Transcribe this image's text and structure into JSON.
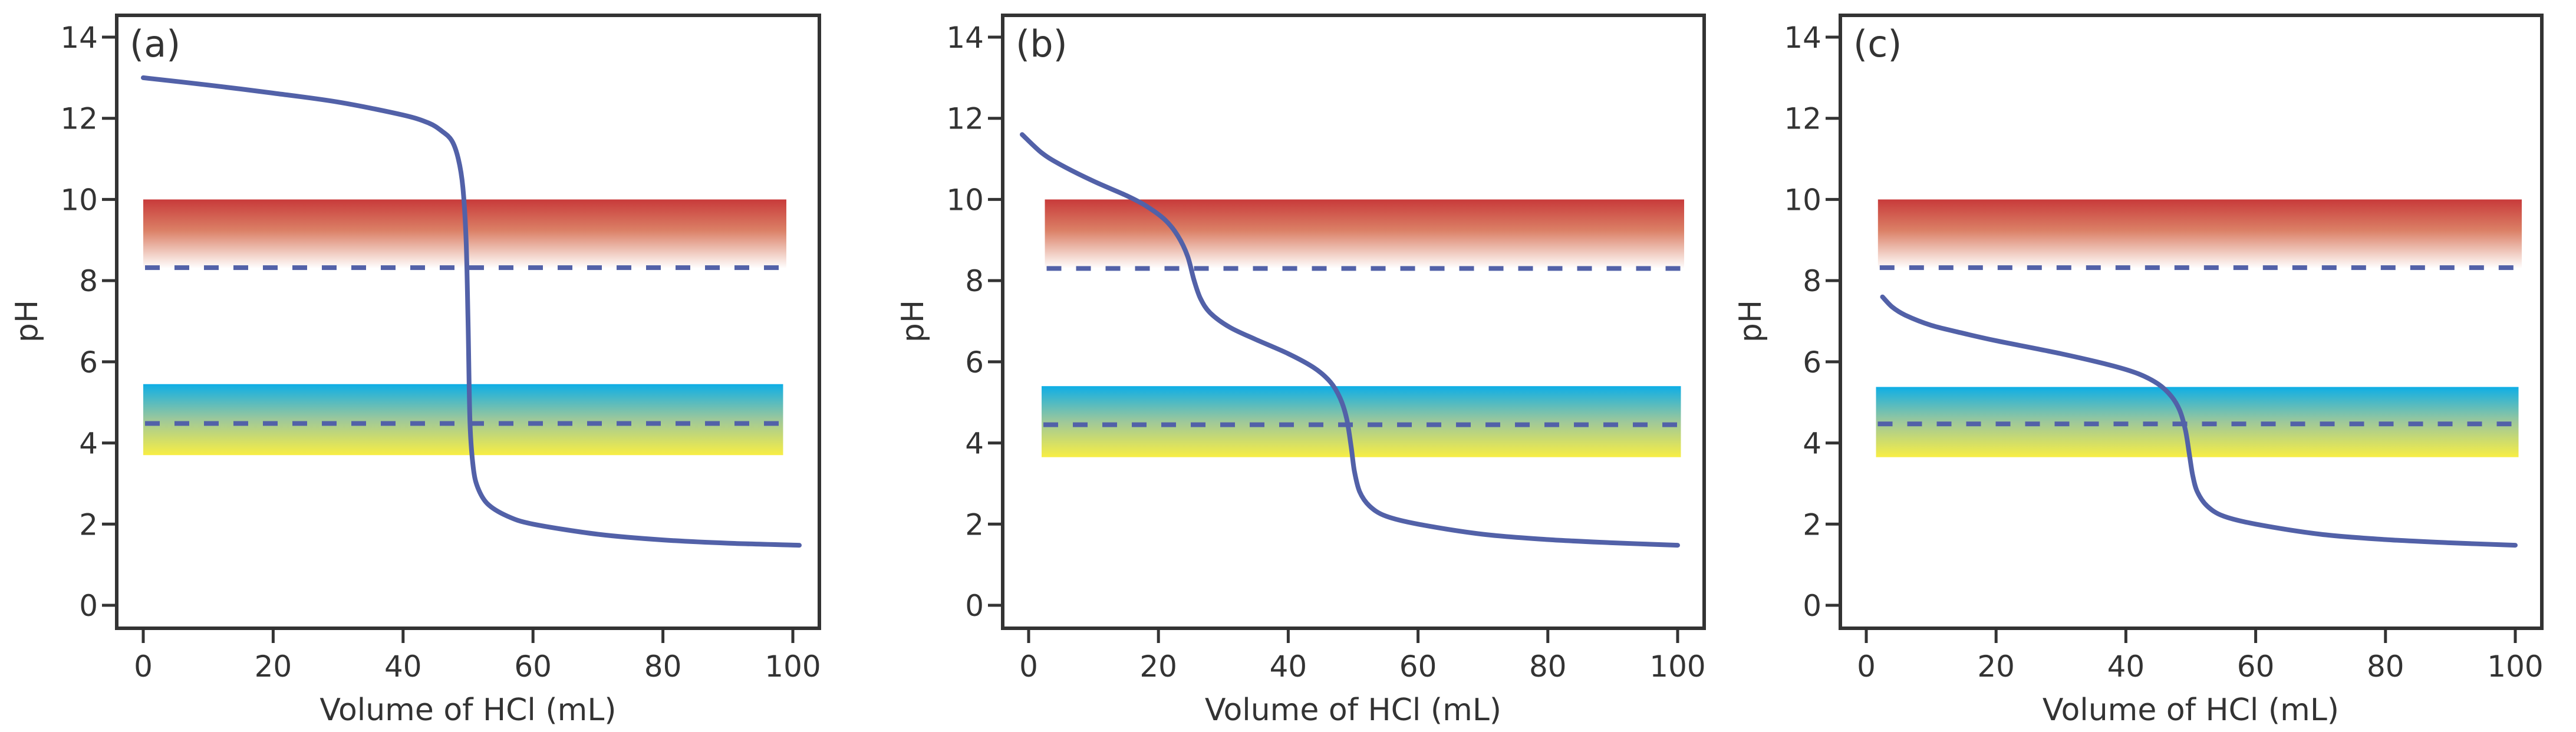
{
  "figure": {
    "description": "Titration curves of a base titrated with HCl, with two indicator color-change ranges"
  },
  "colors": {
    "curve": "#5261a8",
    "frame": "#333333",
    "indicator1_top": "#c83a3a",
    "indicator1_bottom": "#ffffff",
    "indicator2_top": "#0eaee6",
    "indicator2_mid": "#9ec89a",
    "indicator2_bottom": "#f8ee44"
  },
  "chart_data": [
    {
      "type": "line",
      "panel_label": "(a)",
      "xlabel": "Volume of HCl (mL)",
      "ylabel": "pH",
      "xlim": [
        -4,
        104
      ],
      "ylim": [
        -0.6,
        15.4
      ],
      "xticks": [
        0,
        20,
        40,
        60,
        80,
        100
      ],
      "yticks": [
        0,
        2,
        4,
        6,
        8,
        10,
        12,
        14
      ],
      "grid": false,
      "bands": [
        {
          "name": "indicator-red",
          "ymin": 8.3,
          "ymax": 10.0,
          "xmin": 0,
          "xmax": 99,
          "gradient": "red-to-white",
          "dashed_y": 8.32
        },
        {
          "name": "indicator-blue-yellow",
          "ymin": 3.7,
          "ymax": 5.45,
          "xmin": 0,
          "xmax": 98.5,
          "gradient": "blue-to-yellow",
          "dashed_y": 4.48
        }
      ],
      "series": [
        {
          "name": "titration-curve",
          "x": [
            0,
            10,
            20,
            30,
            40,
            44,
            46,
            47.5,
            48.5,
            49.2,
            49.7,
            50.0,
            50.3,
            50.8,
            51.5,
            53,
            56,
            60,
            70,
            80,
            90,
            101
          ],
          "y": [
            13.0,
            12.82,
            12.62,
            12.4,
            12.08,
            11.88,
            11.68,
            11.45,
            11.0,
            10.3,
            9.0,
            7.0,
            4.5,
            3.4,
            2.9,
            2.5,
            2.2,
            2.0,
            1.75,
            1.61,
            1.53,
            1.48
          ]
        }
      ]
    },
    {
      "type": "line",
      "panel_label": "(b)",
      "xlabel": "Volume of HCl (mL)",
      "ylabel": "pH",
      "xlim": [
        -4,
        104
      ],
      "ylim": [
        -0.6,
        15.4
      ],
      "xticks": [
        0,
        20,
        40,
        60,
        80,
        100
      ],
      "yticks": [
        0,
        2,
        4,
        6,
        8,
        10,
        12,
        14
      ],
      "grid": false,
      "bands": [
        {
          "name": "indicator-red",
          "ymin": 8.3,
          "ymax": 10.0,
          "xmin": 2.5,
          "xmax": 101,
          "gradient": "red-to-white",
          "dashed_y": 8.3
        },
        {
          "name": "indicator-blue-yellow",
          "ymin": 3.65,
          "ymax": 5.4,
          "xmin": 2,
          "xmax": 100.5,
          "gradient": "blue-to-yellow",
          "dashed_y": 4.45
        }
      ],
      "series": [
        {
          "name": "titration-curve",
          "x": [
            -1,
            2,
            5,
            10,
            15,
            18,
            21,
            23,
            24.5,
            25.5,
            26.5,
            28,
            31,
            35,
            40,
            44,
            46.5,
            48,
            49,
            49.7,
            50.2,
            51,
            52.5,
            55,
            60,
            70,
            80,
            90,
            100
          ],
          "y": [
            11.6,
            11.15,
            10.85,
            10.45,
            10.1,
            9.85,
            9.5,
            9.1,
            8.6,
            8.0,
            7.55,
            7.2,
            6.85,
            6.55,
            6.2,
            5.85,
            5.5,
            5.1,
            4.6,
            3.9,
            3.3,
            2.8,
            2.45,
            2.2,
            2.0,
            1.75,
            1.62,
            1.54,
            1.48
          ]
        }
      ]
    },
    {
      "type": "line",
      "panel_label": "(c)",
      "xlabel": "Volume of HCl (mL)",
      "ylabel": "pH",
      "xlim": [
        -4,
        104
      ],
      "ylim": [
        -0.6,
        15.4
      ],
      "xticks": [
        0,
        20,
        40,
        60,
        80,
        100
      ],
      "yticks": [
        0,
        2,
        4,
        6,
        8,
        10,
        12,
        14
      ],
      "grid": false,
      "bands": [
        {
          "name": "indicator-red",
          "ymin": 8.3,
          "ymax": 10.0,
          "xmin": 1.8,
          "xmax": 101,
          "gradient": "red-to-white",
          "dashed_y": 8.32
        },
        {
          "name": "indicator-blue-yellow",
          "ymin": 3.65,
          "ymax": 5.38,
          "xmin": 1.5,
          "xmax": 100.5,
          "gradient": "blue-to-yellow",
          "dashed_y": 4.47
        }
      ],
      "series": [
        {
          "name": "titration-curve",
          "x": [
            2.5,
            4,
            6,
            10,
            15,
            20,
            30,
            38,
            42,
            45,
            47,
            48.3,
            49.2,
            49.8,
            50.3,
            51,
            52.5,
            55,
            60,
            70,
            80,
            90,
            100
          ],
          "y": [
            7.6,
            7.35,
            7.15,
            6.9,
            6.7,
            6.52,
            6.2,
            5.9,
            5.7,
            5.45,
            5.15,
            4.8,
            4.3,
            3.7,
            3.2,
            2.8,
            2.45,
            2.2,
            2.0,
            1.75,
            1.62,
            1.54,
            1.48
          ]
        }
      ]
    }
  ]
}
